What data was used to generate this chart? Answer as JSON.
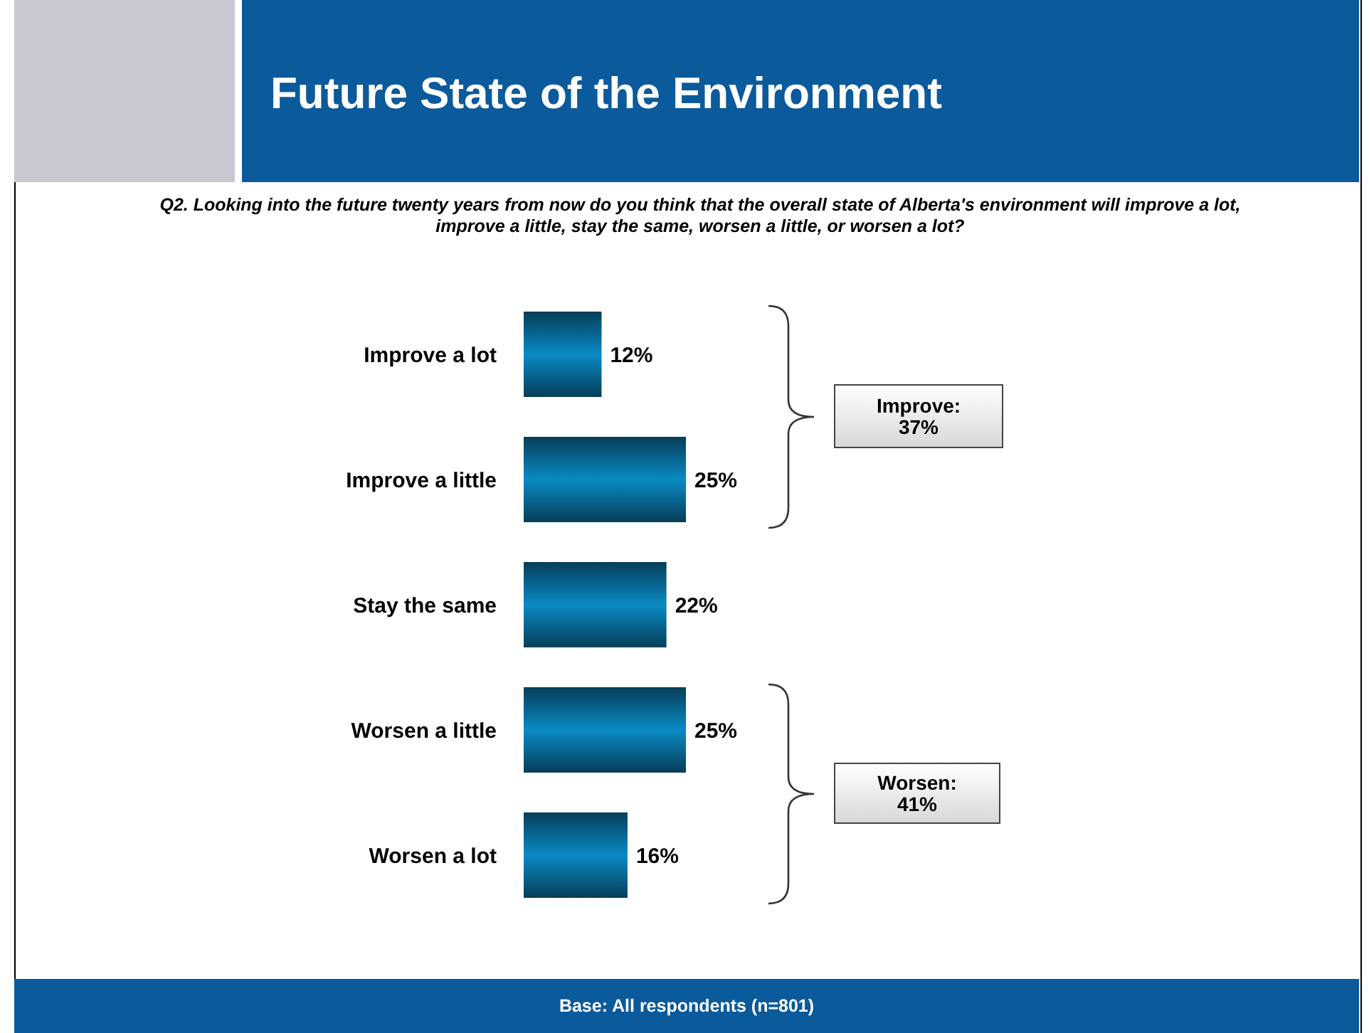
{
  "chart_data": {
    "type": "bar",
    "orientation": "horizontal",
    "title": "Future State of the Environment",
    "subtitle": "Q2. Looking into the future twenty years from now do you think that the overall state of Alberta's environment will improve a lot, improve a little, stay the same, worsen a little, or worsen a lot?",
    "categories": [
      "Improve a lot",
      "Improve a little",
      "Stay the same",
      "Worsen a little",
      "Worsen a lot"
    ],
    "values": [
      12,
      25,
      22,
      25,
      16
    ],
    "value_labels": [
      "12%",
      "25%",
      "22%",
      "25%",
      "16%"
    ],
    "color": "#0a8ac4",
    "annotations": [
      "Improve: 37%",
      "Worsen: 41%",
      "Base: All respondents (n=801)"
    ],
    "grid": false,
    "legend": false
  }
}
